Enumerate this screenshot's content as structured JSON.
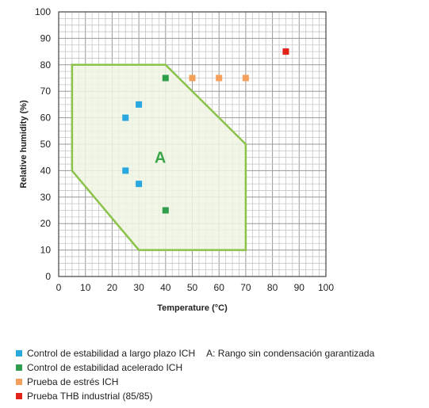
{
  "chart_data": {
    "type": "scatter",
    "xlabel": "Temperature (°C)",
    "ylabel": "Relative humidity (%)",
    "xlim": [
      0,
      100
    ],
    "ylim": [
      0,
      100
    ],
    "xticks": [
      0,
      10,
      20,
      30,
      40,
      50,
      60,
      70,
      80,
      90,
      100
    ],
    "yticks": [
      0,
      10,
      20,
      30,
      40,
      50,
      60,
      70,
      80,
      90,
      100
    ],
    "grid": true,
    "region": {
      "label": "A",
      "label_at": [
        38,
        45
      ],
      "color": "#8bc34a",
      "fill": "#eef4e2",
      "polygon": [
        [
          5,
          80
        ],
        [
          40,
          80
        ],
        [
          70,
          50
        ],
        [
          70,
          10
        ],
        [
          30,
          10
        ],
        [
          5,
          40
        ]
      ]
    },
    "series": [
      {
        "name": "Control de estabilidad a largo plazo ICH",
        "color": "#29a8e0",
        "points": [
          [
            25,
            60
          ],
          [
            30,
            65
          ],
          [
            25,
            40
          ],
          [
            30,
            35
          ]
        ]
      },
      {
        "name": "Control de estabilidad acelerado ICH",
        "color": "#2e9e4a",
        "points": [
          [
            40,
            75
          ],
          [
            40,
            25
          ]
        ]
      },
      {
        "name": "Prueba de estrés ICH",
        "color": "#f5a05a",
        "points": [
          [
            50,
            75
          ],
          [
            60,
            75
          ],
          [
            70,
            75
          ]
        ]
      },
      {
        "name": "Prueba THB industrial (85/85)",
        "color": "#e32219",
        "points": [
          [
            85,
            85
          ]
        ]
      }
    ],
    "annotation": "A: Rango sin condensación garantizada",
    "legend_position": "bottom"
  }
}
